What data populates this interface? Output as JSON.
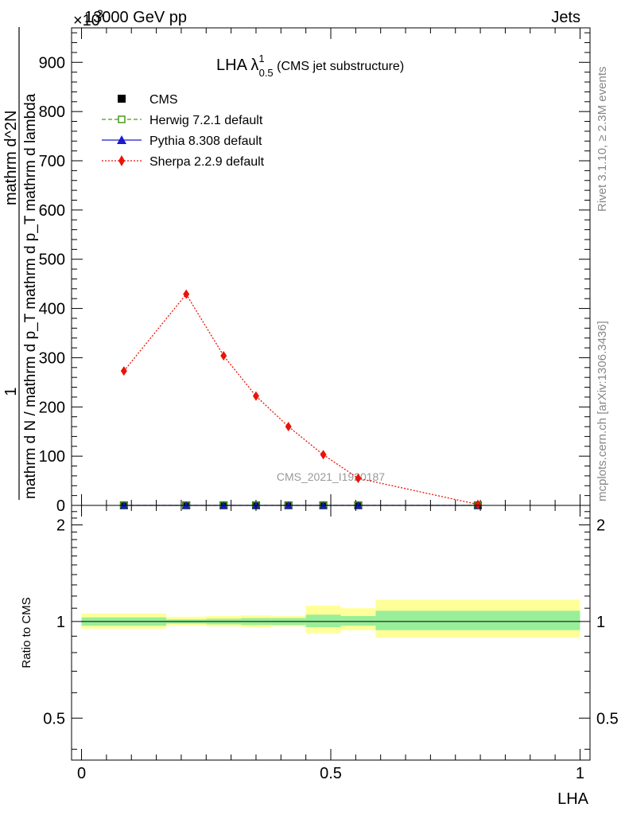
{
  "header": {
    "left_label": "13000 GeV pp",
    "right_label": "Jets",
    "exponent_label": "×10",
    "exponent_power": "3"
  },
  "side_text": {
    "rivet": "Rivet 3.1.10, ≥ 2.3M events",
    "mcplots": "mcplots.cern.ch [arXiv:1306.3436]"
  },
  "watermark": "CMS_2021_I1920187",
  "chart_data": [
    {
      "type": "line",
      "title_main": "LHA λ",
      "title_sup": "1",
      "title_sub": "0.5",
      "title_tail": " (CMS jet substructure)",
      "ylabel_numerator": "1",
      "ylabel_denominator": "mathrm d N / mathrm d p_T",
      "ylabel_full": "mathrm d N / mathrm d p_T mathrm d p_T mathrm d lambda",
      "ylabel_denominator2": "mathrm d^2N",
      "ylim": [
        0,
        970
      ],
      "y_ticks": [
        0,
        100,
        200,
        300,
        400,
        500,
        600,
        700,
        800,
        900
      ],
      "y_tick_labels": [
        "0",
        "100",
        "200",
        "300",
        "400",
        "500",
        "600",
        "700",
        "800",
        "900"
      ],
      "y_unit_scale": "×10^3",
      "xlim": [
        -0.02,
        1.02
      ],
      "legend_position": "top-left",
      "series": [
        {
          "name": "CMS",
          "color": "#000000",
          "marker": "filled-square",
          "x": [
            0.085,
            0.21,
            0.285,
            0.35,
            0.415,
            0.485,
            0.555,
            0.795
          ],
          "y": [
            0,
            0,
            0,
            0,
            0,
            0,
            0,
            0
          ]
        },
        {
          "name": "Herwig 7.2.1 default",
          "color": "#4a9a1a",
          "marker": "open-square",
          "linestyle": "dashed",
          "x": [
            0.085,
            0.21,
            0.285,
            0.35,
            0.415,
            0.485,
            0.555,
            0.795
          ],
          "y": [
            0,
            0,
            0,
            0,
            0,
            0,
            0,
            0
          ]
        },
        {
          "name": "Pythia 8.308 default",
          "color": "#1a1acc",
          "marker": "triangle",
          "linestyle": "solid",
          "x": [
            0.085,
            0.21,
            0.285,
            0.35,
            0.415,
            0.485,
            0.555,
            0.795
          ],
          "y": [
            0,
            0,
            0,
            0,
            0,
            0,
            0,
            0
          ]
        },
        {
          "name": "Sherpa 2.2.9 default",
          "color": "#e8140a",
          "marker": "diamond",
          "linestyle": "dotted",
          "x": [
            0.085,
            0.21,
            0.285,
            0.35,
            0.415,
            0.485,
            0.555,
            0.795
          ],
          "y": [
            273,
            429,
            304,
            222,
            160,
            103,
            55,
            2
          ]
        }
      ]
    },
    {
      "type": "area",
      "ylabel": "Ratio to CMS",
      "xlabel": "LHA",
      "scale": "log",
      "ylim": [
        0.37,
        2.3
      ],
      "y_ticks": [
        0.5,
        1,
        2
      ],
      "y_tick_labels": [
        "0.5",
        "1",
        "2"
      ],
      "xlim": [
        -0.02,
        1.02
      ],
      "x_ticks": [
        0,
        0.5,
        1
      ],
      "x_tick_labels": [
        "0",
        "0.5",
        "1"
      ],
      "reference": 1,
      "bins": {
        "edges": [
          0,
          0.17,
          0.25,
          0.32,
          0.38,
          0.45,
          0.52,
          0.59,
          1.0
        ],
        "stat_lo": [
          0.97,
          0.985,
          0.98,
          0.975,
          0.975,
          0.96,
          0.97,
          0.94
        ],
        "stat_hi": [
          1.03,
          1.015,
          1.02,
          1.025,
          1.025,
          1.05,
          1.04,
          1.08
        ],
        "total_lo": [
          0.95,
          0.97,
          0.965,
          0.96,
          0.965,
          0.92,
          0.94,
          0.89
        ],
        "total_hi": [
          1.06,
          1.035,
          1.04,
          1.045,
          1.04,
          1.12,
          1.1,
          1.17
        ]
      },
      "colors": {
        "stat": "#99ee99",
        "total": "#ffff99"
      }
    }
  ]
}
